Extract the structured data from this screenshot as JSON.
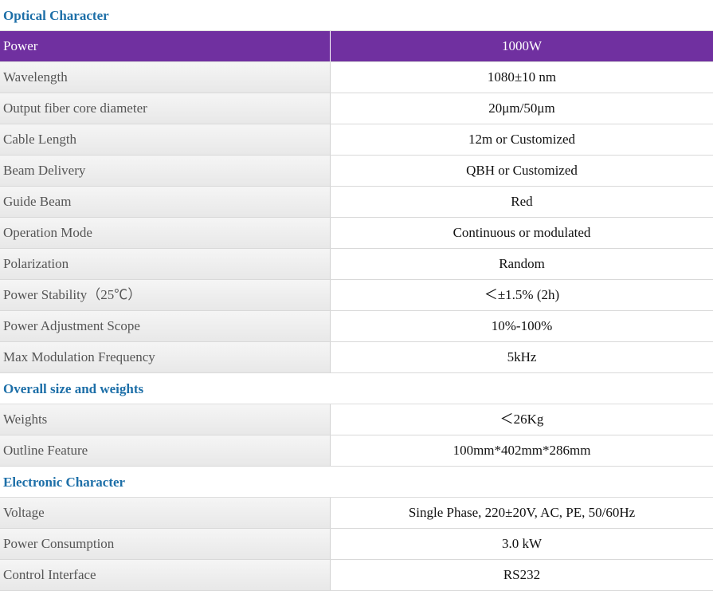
{
  "sections": [
    {
      "title": "Optical Character",
      "rows": [
        {
          "label": "Power",
          "value": "1000W"
        },
        {
          "label": "Wavelength",
          "value": "1080±10 nm"
        },
        {
          "label": "Output fiber core diameter",
          "value": "20μm/50μm"
        },
        {
          "label": "Cable Length",
          "value": "12m or Customized"
        },
        {
          "label": "Beam Delivery",
          "value": "QBH or Customized"
        },
        {
          "label": "Guide Beam",
          "value": "Red"
        },
        {
          "label": "Operation Mode",
          "value": "Continuous or modulated"
        },
        {
          "label": "Polarization",
          "value": "Random"
        },
        {
          "label": "Power Stability（25℃）",
          "value": "＜±1.5% (2h)"
        },
        {
          "label": "Power Adjustment Scope",
          "value": "10%-100%"
        },
        {
          "label": "Max Modulation Frequency",
          "value": "5kHz"
        }
      ]
    },
    {
      "title": "Overall size and weights",
      "rows": [
        {
          "label": "Weights",
          "value": "＜26Kg"
        },
        {
          "label": "Outline Feature",
          "value": "100mm*402mm*286mm"
        }
      ]
    },
    {
      "title": "Electronic Character",
      "rows": [
        {
          "label": "Voltage",
          "value": "Single Phase, 220±20V, AC, PE, 50/60Hz"
        },
        {
          "label": "Power Consumption",
          "value": "3.0 kW"
        },
        {
          "label": "Control Interface",
          "value": "RS232"
        }
      ]
    }
  ]
}
